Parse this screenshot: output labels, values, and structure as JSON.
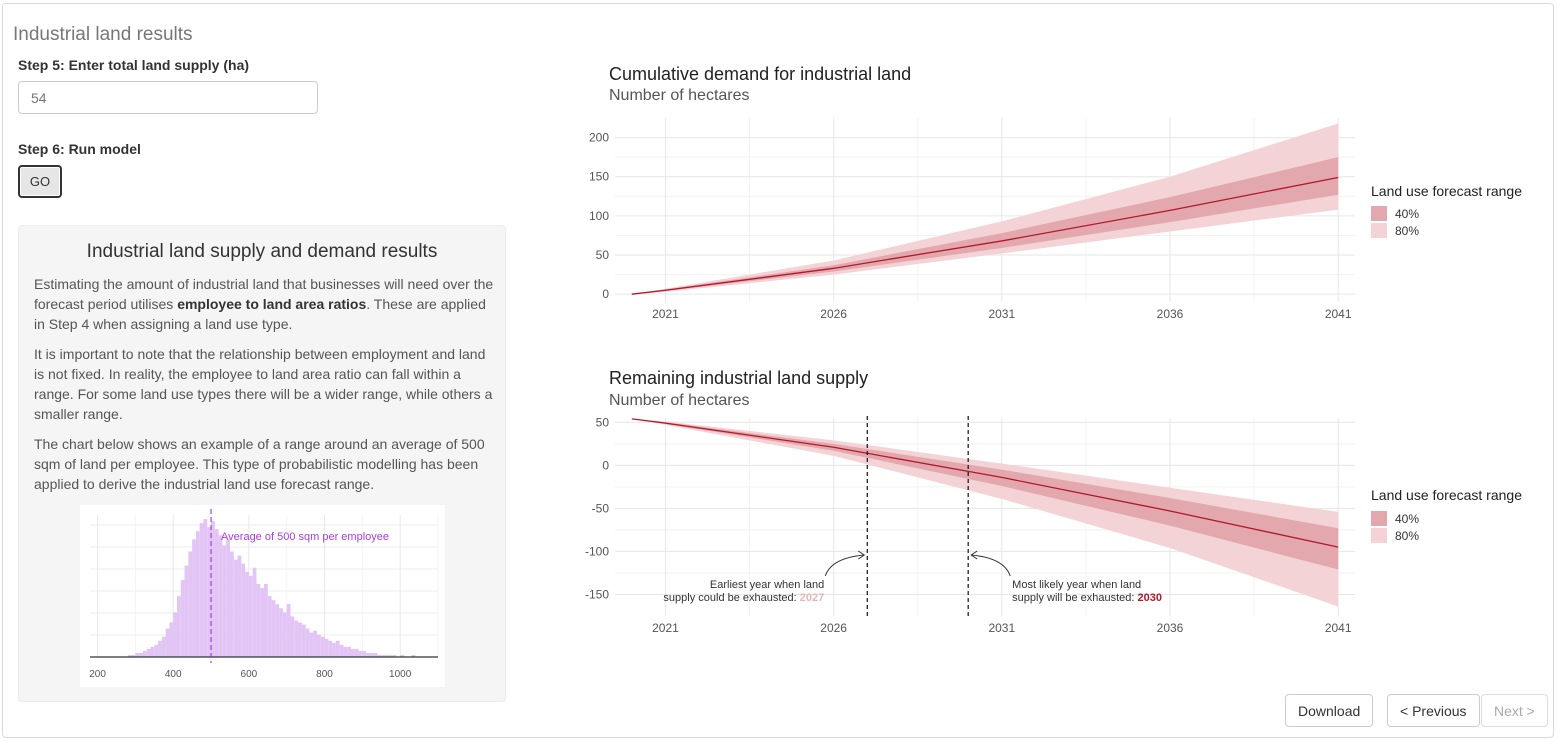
{
  "page": {
    "title": "Industrial land results"
  },
  "step5": {
    "label": "Step 5: Enter total land supply (ha)",
    "value": "54"
  },
  "step6": {
    "label": "Step 6: Run model",
    "button": "GO"
  },
  "info_panel": {
    "title": "Industrial land supply and demand results",
    "para1_a": "Estimating the amount of industrial land that businesses will need over the forecast period utilises ",
    "para1_bold": "employee to land area ratios",
    "para1_b": ". These are applied in Step 4 when assigning a land use type.",
    "para2": "It is important to note that the relationship between employment and land is not fixed. In reality, the employee to land area ratio can fall within a range. For some land use types there will be a wider range, while others a smaller range.",
    "para3": "The chart below shows an example of a range around an average of 500 sqm of land per employee. This type of probabilistic modelling has been applied to derive the industrial land use forecast range."
  },
  "colors": {
    "accent_line": "#b2182b",
    "band_40": "#e3a8ad",
    "band_80": "#f3d3d5",
    "hist_fill": "#e2c4f5",
    "hist_line": "#a83fe0",
    "earliest_year": "#e8b4b8",
    "likely_year": "#b2182b"
  },
  "legend": {
    "title": "Land use forecast range",
    "items": [
      "40%",
      "80%"
    ]
  },
  "annotations": {
    "earliest_l1": "Earliest year when land",
    "earliest_l2": "supply could be exhausted: ",
    "earliest_year": "2027",
    "likely_l1": "Most likely year when land",
    "likely_l2": "supply will be exhausted: ",
    "likely_year": "2030"
  },
  "chart_data": [
    {
      "type": "area",
      "title": "Cumulative demand for industrial land",
      "subtitle": "Number of hectares",
      "x_ticks": [
        "2021",
        "2026",
        "2031",
        "2036",
        "2041"
      ],
      "y_ticks": [
        0,
        50,
        100,
        150,
        200
      ],
      "xlim": [
        2019.5,
        2041.5
      ],
      "ylim": [
        -10,
        225
      ],
      "series": [
        {
          "name": "median",
          "x": [
            2020,
            2021,
            2026,
            2031,
            2036,
            2041
          ],
          "values": [
            0,
            5,
            33,
            68,
            107,
            149
          ]
        },
        {
          "name": "40%",
          "x": [
            2020,
            2021,
            2026,
            2031,
            2036,
            2041
          ],
          "lower": [
            0,
            4,
            29,
            59,
            92,
            127
          ],
          "upper": [
            0,
            6,
            37,
            78,
            124,
            175
          ]
        },
        {
          "name": "80%",
          "x": [
            2020,
            2021,
            2026,
            2031,
            2036,
            2041
          ],
          "lower": [
            0,
            3,
            25,
            52,
            80,
            108
          ],
          "upper": [
            0,
            7,
            43,
            93,
            150,
            218
          ]
        }
      ]
    },
    {
      "type": "area",
      "title": "Remaining industrial land supply",
      "subtitle": "Number of hectares",
      "x_ticks": [
        "2021",
        "2026",
        "2031",
        "2036",
        "2041"
      ],
      "y_ticks": [
        50,
        0,
        -50,
        -100,
        -150
      ],
      "xlim": [
        2019.5,
        2041.5
      ],
      "ylim": [
        -175,
        55
      ],
      "vlines": [
        2027,
        2030
      ],
      "series": [
        {
          "name": "median",
          "x": [
            2020,
            2021,
            2026,
            2031,
            2036,
            2041
          ],
          "values": [
            54,
            49,
            21,
            -14,
            -53,
            -95
          ]
        },
        {
          "name": "40%",
          "x": [
            2020,
            2021,
            2026,
            2031,
            2036,
            2041
          ],
          "lower": [
            54,
            48,
            17,
            -24,
            -70,
            -121
          ],
          "upper": [
            54,
            50,
            25,
            -5,
            -38,
            -73
          ]
        },
        {
          "name": "80%",
          "x": [
            2020,
            2021,
            2026,
            2031,
            2036,
            2041
          ],
          "lower": [
            54,
            47,
            11,
            -39,
            -96,
            -164
          ],
          "upper": [
            54,
            51,
            29,
            2,
            -26,
            -54
          ]
        }
      ]
    },
    {
      "type": "bar",
      "subtitle": "",
      "x_ticks": [
        200,
        400,
        600,
        800,
        1000
      ],
      "xlim": [
        180,
        1100
      ],
      "annotation": "Average of 500 sqm per employee",
      "vline": 500,
      "bin_start": 280,
      "bin_width": 10,
      "values": [
        1,
        1,
        2,
        2,
        3,
        4,
        5,
        6,
        8,
        10,
        14,
        17,
        22,
        30,
        38,
        45,
        52,
        58,
        62,
        66,
        68,
        64,
        67,
        63,
        60,
        55,
        58,
        52,
        48,
        50,
        46,
        42,
        40,
        44,
        36,
        34,
        36,
        30,
        28,
        26,
        24,
        22,
        26,
        20,
        18,
        17,
        16,
        14,
        12,
        13,
        11,
        10,
        9,
        8,
        7,
        8,
        6,
        5,
        5,
        4,
        4,
        3,
        3,
        2,
        2,
        2,
        1,
        1,
        1,
        1,
        1,
        0,
        1,
        0,
        0,
        1
      ]
    }
  ],
  "buttons": {
    "download": "Download",
    "previous": "< Previous",
    "next": "Next >"
  }
}
